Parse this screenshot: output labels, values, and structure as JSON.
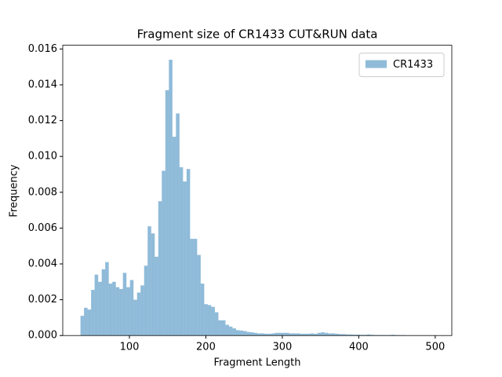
{
  "chart_data": {
    "type": "histogram",
    "title": "Fragment size of CR1433 CUT&RUN data",
    "xlabel": "Fragment Length",
    "ylabel": "Frequency",
    "series": [
      {
        "name": "CR1433",
        "color": "#1f77b4",
        "alpha": 0.5,
        "bins": [
          36,
          40.625,
          45.25,
          49.875,
          54.5,
          59.125,
          63.75,
          68.375,
          73,
          77.625,
          82.25,
          86.875,
          91.5,
          96.125,
          100.75,
          105.375,
          110,
          114.625,
          119.25,
          123.875,
          128.5,
          133.125,
          137.75,
          142.375,
          147,
          151.625,
          156.25,
          160.875,
          165.5,
          170.125,
          174.75,
          179.375,
          184,
          188.625,
          193.25,
          197.875,
          202.5,
          207.125,
          211.75,
          216.375,
          221,
          225.625,
          230.25,
          234.875,
          239.5,
          244.125,
          248.75,
          253.375,
          258,
          262.625,
          267.25,
          271.875,
          276.5,
          281.125,
          285.75,
          290.375,
          295,
          299.625,
          304.25,
          308.875,
          313.5,
          318.125,
          322.75,
          327.375,
          332,
          336.625,
          341.25,
          345.875,
          350.5,
          355.125,
          359.75,
          364.375,
          369,
          373.625,
          378.25,
          382.875,
          387.5,
          392.125,
          396.75,
          401.375,
          406,
          410.625,
          415.25,
          419.875,
          424.5,
          429.125,
          433.75,
          438.375,
          443,
          447.625,
          452.25,
          456.875,
          461.5,
          466.125,
          470.75,
          475.375,
          480,
          484.625,
          489.25,
          493.875,
          498.5
        ],
        "values": [
          0.0011,
          0.00155,
          0.00145,
          0.00255,
          0.0034,
          0.003,
          0.0037,
          0.0041,
          0.0029,
          0.003,
          0.0027,
          0.0026,
          0.0035,
          0.0027,
          0.0031,
          0.002,
          0.0024,
          0.0028,
          0.0039,
          0.0061,
          0.0057,
          0.0044,
          0.0075,
          0.0092,
          0.0137,
          0.0154,
          0.0111,
          0.0124,
          0.0094,
          0.0086,
          0.0093,
          0.0054,
          0.0054,
          0.0045,
          0.0029,
          0.00175,
          0.0017,
          0.0016,
          0.0013,
          0.00085,
          0.00085,
          0.0006,
          0.0005,
          0.0004,
          0.0003,
          0.00028,
          0.00025,
          0.0002,
          0.00018,
          0.00015,
          0.00012,
          0.00012,
          0.0001,
          0.0001,
          0.00012,
          0.00015,
          0.00015,
          0.00015,
          0.00015,
          0.00012,
          0.00012,
          0.00012,
          0.0001,
          0.0001,
          0.0001,
          0.00012,
          0.0001,
          0.00015,
          0.00018,
          0.00015,
          0.00012,
          0.00012,
          0.0001,
          8e-05,
          8e-05,
          6e-05,
          6e-05,
          5e-05,
          5e-05,
          4e-05,
          4e-05,
          6e-05,
          4e-05,
          3e-05,
          3e-05,
          3e-05,
          2e-05,
          3e-05,
          4e-05,
          2e-05,
          2e-05,
          2e-05,
          1e-05,
          1e-05,
          1e-05,
          1e-05,
          1e-05,
          1e-05,
          1e-05,
          1e-05
        ]
      }
    ],
    "xlim": [
      12.8,
      521.7
    ],
    "xticks": [
      100,
      200,
      300,
      400,
      500
    ],
    "ylim": [
      0,
      0.01621
    ],
    "yticks": [
      {
        "value": 0,
        "label": "0.000"
      },
      {
        "value": 0.002,
        "label": "0.002"
      },
      {
        "value": 0.004,
        "label": "0.004"
      },
      {
        "value": 0.006,
        "label": "0.006"
      },
      {
        "value": 0.008,
        "label": "0.008"
      },
      {
        "value": 0.01,
        "label": "0.010"
      },
      {
        "value": 0.012,
        "label": "0.012"
      },
      {
        "value": 0.014,
        "label": "0.014"
      },
      {
        "value": 0.016,
        "label": "0.016"
      }
    ],
    "legend": "upper right",
    "grid": false
  }
}
